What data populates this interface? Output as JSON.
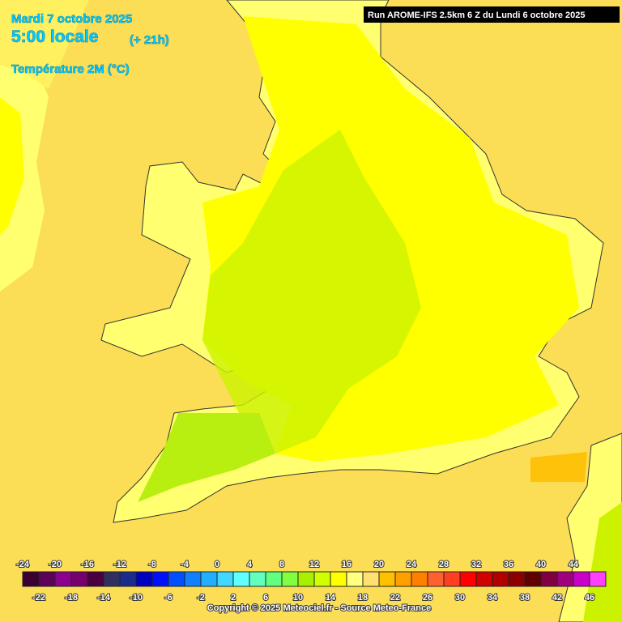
{
  "header": {
    "date": "Mardi 7 octobre 2025",
    "time": "5:00 locale",
    "lead": "(+ 21h)",
    "parameter": "Température 2M (°C)",
    "run": "Run AROME-IFS 2.5km 6 Z du Lundi 6 octobre 2025"
  },
  "legend": {
    "ticks_top": [
      -24,
      -20,
      -16,
      -12,
      -8,
      -4,
      0,
      4,
      8,
      12,
      16,
      20,
      24,
      28,
      32,
      36,
      40,
      44
    ],
    "ticks_bottom": [
      -22,
      -18,
      -14,
      -10,
      -6,
      -2,
      2,
      6,
      10,
      14,
      18,
      22,
      26,
      30,
      34,
      38,
      42,
      46
    ],
    "colors": [
      "#3c0032",
      "#5c0058",
      "#8c0090",
      "#78006e",
      "#4a0040",
      "#303060",
      "#1c2c8c",
      "#0000c0",
      "#0010ff",
      "#0050ff",
      "#1080ff",
      "#20b0ff",
      "#40d8ff",
      "#60ffff",
      "#60ffc0",
      "#60ff80",
      "#80ff40",
      "#a8f000",
      "#d0ff00",
      "#ffff00",
      "#ffff80",
      "#ffe070",
      "#ffc000",
      "#ffa000",
      "#ff8000",
      "#ff6030",
      "#ff4020",
      "#ff0000",
      "#d00000",
      "#b00000",
      "#8c0000",
      "#600000",
      "#800040",
      "#a00080",
      "#c800c8",
      "#ff40ff"
    ]
  },
  "footer": {
    "copyright": "Copyright © 2025 Meteociel.fr - Source Meteo-France"
  }
}
